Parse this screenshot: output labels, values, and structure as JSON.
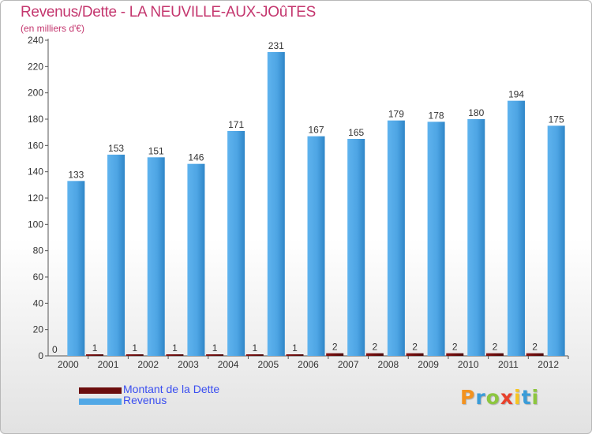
{
  "title": "Revenus/Dette - LA NEUVILLE-AUX-JOûTES",
  "subtitle": "(en milliers d'€)",
  "logo": {
    "letters": [
      "P",
      "r",
      "o",
      "x",
      "i",
      "t",
      "i"
    ],
    "colors": [
      "#f3921e",
      "#3a9cd8",
      "#8dc63f",
      "#e8412c",
      "#f7c520",
      "#3a9cd8",
      "#8dc63f"
    ]
  },
  "legend": [
    {
      "label": "Montant de la Dette",
      "color": "#6b0d0d"
    },
    {
      "label": "Revenus",
      "color": "#52a8e6"
    }
  ],
  "chart_data": {
    "type": "bar",
    "categories": [
      "2000",
      "2001",
      "2002",
      "2003",
      "2004",
      "2005",
      "2006",
      "2007",
      "2008",
      "2009",
      "2010",
      "2011",
      "2012"
    ],
    "series": [
      {
        "name": "Montant de la Dette",
        "color": "#6b0d0d",
        "values": [
          0,
          1,
          1,
          1,
          1,
          1,
          1,
          2,
          2,
          2,
          2,
          2,
          2
        ]
      },
      {
        "name": "Revenus",
        "color": "#52a8e6",
        "values": [
          133,
          153,
          151,
          146,
          171,
          231,
          167,
          165,
          179,
          178,
          180,
          194,
          175
        ]
      }
    ],
    "ylim": [
      0,
      240
    ],
    "yticks": [
      0,
      20,
      40,
      60,
      80,
      100,
      120,
      140,
      160,
      180,
      200,
      220,
      240
    ],
    "grid": false,
    "legend_position": "bottom-left"
  }
}
